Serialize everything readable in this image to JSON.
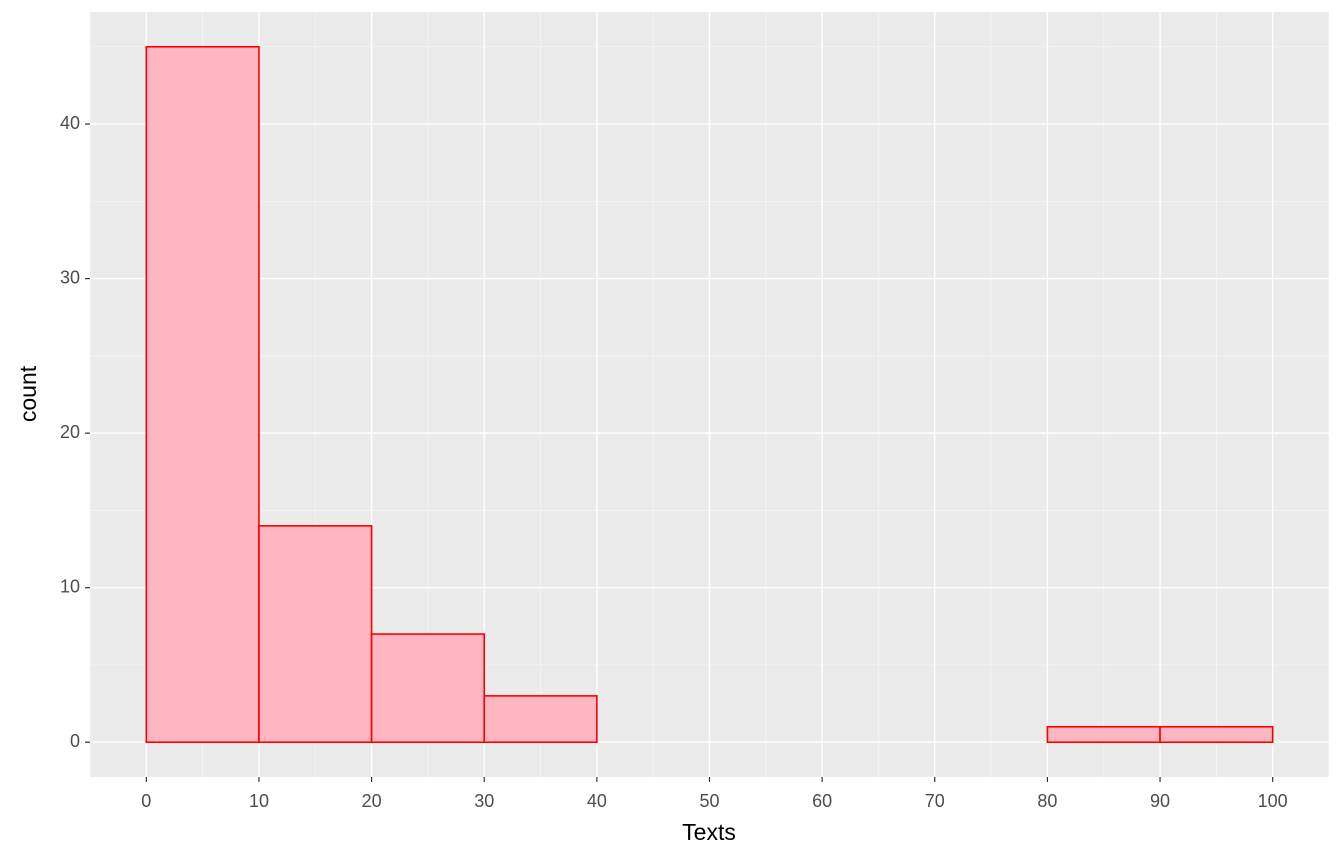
{
  "chart_data": {
    "type": "histogram",
    "x_label": "Texts",
    "y_label": "count",
    "bins": [
      0,
      10,
      20,
      30,
      40,
      50,
      60,
      70,
      80,
      90,
      100
    ],
    "values": [
      45,
      14,
      7,
      3,
      0,
      0,
      0,
      0,
      1,
      1
    ],
    "color": "#ffb6c1",
    "edge_color": "#ff0000",
    "xlim": [
      -5,
      105
    ],
    "ylim": [
      -2.25,
      47.25
    ],
    "xticks": [
      0,
      10,
      20,
      30,
      40,
      50,
      60,
      70,
      80,
      90,
      100
    ],
    "yticks": [
      0,
      10,
      20,
      30,
      40
    ],
    "grid": true
  }
}
